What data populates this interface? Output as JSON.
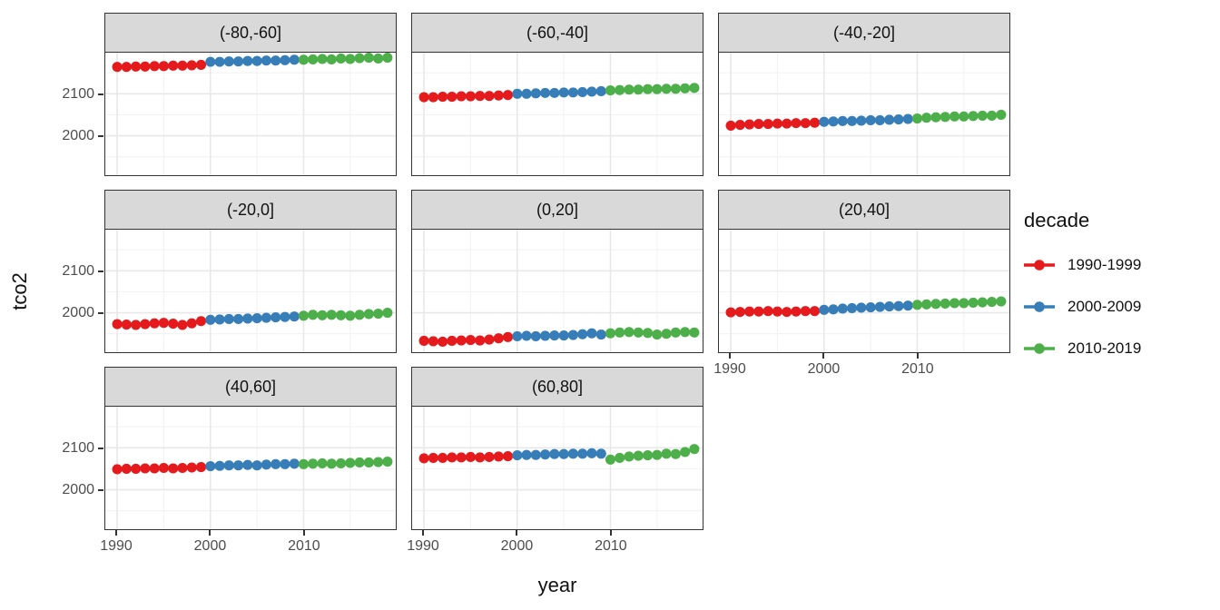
{
  "colors": {
    "red": "#E41A1C",
    "blue": "#377EB8",
    "green": "#4DAF4A",
    "strip_bg": "#D9D9D9",
    "panel_border": "#333333",
    "grid_major": "#E8E8E8",
    "grid_minor": "#F3F3F3",
    "tick_text": "#4D4D4D",
    "title_text": "#111111"
  },
  "chart_data": {
    "type": "scatter",
    "title": "",
    "xlabel": "year",
    "ylabel": "tco2",
    "x_ticks": [
      1990,
      2000,
      2010
    ],
    "x_minor_ticks": [
      1995,
      2005,
      2015
    ],
    "y_ticks": [
      2000,
      2100
    ],
    "y_minor_ticks": [
      1950,
      2050,
      2150
    ],
    "x_range": [
      1988.7,
      2020.8
    ],
    "y_range": [
      1906,
      2198
    ],
    "grid": true,
    "legend": {
      "title": "decade",
      "position": "right",
      "entries": [
        {
          "label": "1990-1999",
          "color": "#E41A1C"
        },
        {
          "label": "2000-2009",
          "color": "#377EB8"
        },
        {
          "label": "2010-2019",
          "color": "#4DAF4A"
        }
      ]
    },
    "facets": [
      {
        "label": "(-80,-60]",
        "decades": {
          "1990-1999": [
            2164,
            2164,
            2165,
            2165,
            2166,
            2166,
            2167,
            2167,
            2168,
            2169
          ],
          "2000-2009": [
            2176,
            2176,
            2177,
            2177,
            2178,
            2178,
            2179,
            2179,
            2180,
            2181
          ],
          "2010-2019": [
            2181,
            2182,
            2183,
            2182,
            2184,
            2183,
            2185,
            2186,
            2184,
            2186
          ]
        }
      },
      {
        "label": "(-60,-40]",
        "decades": {
          "1990-1999": [
            2092,
            2092,
            2093,
            2093,
            2094,
            2094,
            2095,
            2095,
            2096,
            2097
          ],
          "2000-2009": [
            2100,
            2100,
            2101,
            2102,
            2102,
            2103,
            2103,
            2104,
            2105,
            2106
          ],
          "2010-2019": [
            2108,
            2109,
            2110,
            2110,
            2111,
            2111,
            2112,
            2112,
            2113,
            2114
          ]
        }
      },
      {
        "label": "(-40,-20]",
        "decades": {
          "1990-1999": [
            2024,
            2026,
            2027,
            2028,
            2028,
            2029,
            2029,
            2030,
            2030,
            2031
          ],
          "2000-2009": [
            2033,
            2034,
            2035,
            2035,
            2036,
            2037,
            2037,
            2038,
            2039,
            2040
          ],
          "2010-2019": [
            2041,
            2043,
            2044,
            2045,
            2046,
            2046,
            2047,
            2048,
            2048,
            2050
          ]
        }
      },
      {
        "label": "(-20,0]",
        "decades": {
          "1990-1999": [
            1973,
            1972,
            1971,
            1973,
            1975,
            1976,
            1974,
            1971,
            1975,
            1980
          ],
          "2000-2009": [
            1983,
            1984,
            1985,
            1985,
            1986,
            1987,
            1988,
            1989,
            1990,
            1991
          ],
          "2010-2019": [
            1993,
            1995,
            1994,
            1995,
            1994,
            1993,
            1995,
            1997,
            1998,
            2000
          ]
        }
      },
      {
        "label": "(0,20]",
        "decades": {
          "1990-1999": [
            1933,
            1932,
            1931,
            1933,
            1934,
            1935,
            1934,
            1936,
            1939,
            1942
          ],
          "2000-2009": [
            1944,
            1945,
            1944,
            1945,
            1946,
            1946,
            1947,
            1949,
            1951,
            1948
          ],
          "2010-2019": [
            1951,
            1953,
            1954,
            1953,
            1952,
            1948,
            1950,
            1953,
            1954,
            1953
          ]
        }
      },
      {
        "label": "(20,40]",
        "decades": {
          "1990-1999": [
            2001,
            2002,
            2003,
            2003,
            2004,
            2003,
            2002,
            2003,
            2004,
            2004
          ],
          "2000-2009": [
            2007,
            2008,
            2010,
            2011,
            2012,
            2013,
            2014,
            2015,
            2016,
            2017
          ],
          "2010-2019": [
            2019,
            2020,
            2021,
            2022,
            2023,
            2023,
            2024,
            2025,
            2026,
            2027
          ]
        }
      },
      {
        "label": "(40,60]",
        "decades": {
          "1990-1999": [
            2049,
            2050,
            2050,
            2051,
            2051,
            2052,
            2051,
            2052,
            2053,
            2054
          ],
          "2000-2009": [
            2056,
            2057,
            2058,
            2058,
            2059,
            2058,
            2060,
            2061,
            2061,
            2062
          ],
          "2010-2019": [
            2061,
            2062,
            2063,
            2062,
            2063,
            2064,
            2065,
            2065,
            2066,
            2067
          ]
        }
      },
      {
        "label": "(60,80]",
        "decades": {
          "1990-1999": [
            2075,
            2076,
            2076,
            2077,
            2077,
            2078,
            2077,
            2078,
            2079,
            2080
          ],
          "2000-2009": [
            2082,
            2083,
            2083,
            2084,
            2085,
            2085,
            2086,
            2086,
            2087,
            2086
          ],
          "2010-2019": [
            2072,
            2076,
            2079,
            2081,
            2082,
            2083,
            2086,
            2085,
            2090,
            2097
          ]
        }
      }
    ]
  }
}
